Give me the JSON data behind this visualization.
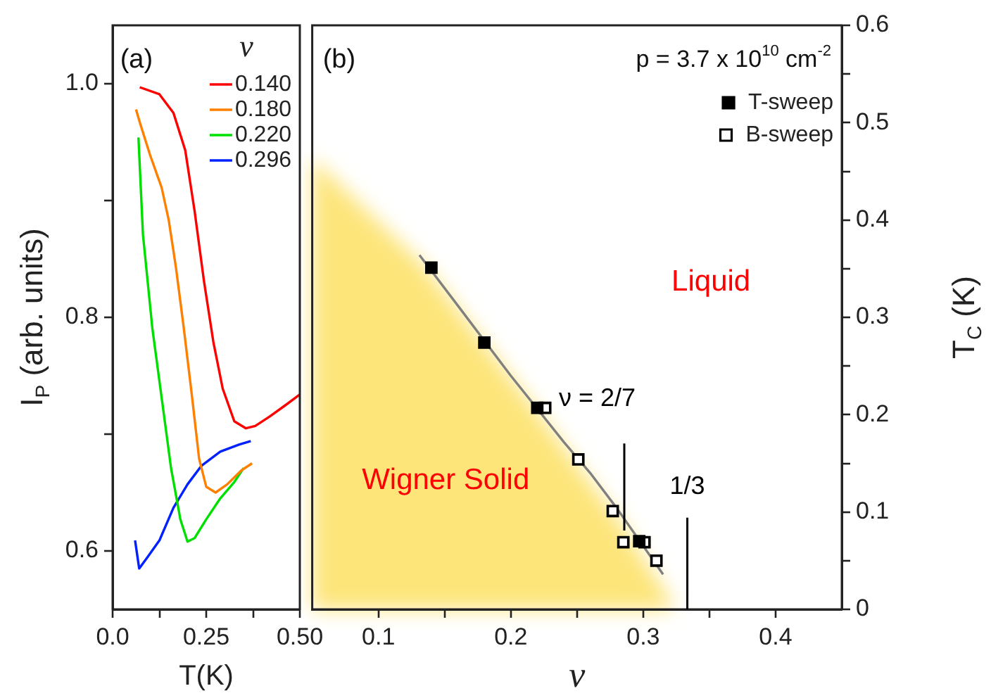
{
  "chart_data": [
    {
      "type": "line",
      "xlabel": "T(K)",
      "ylabel": "I$_{P}$ (arb. units)",
      "legend_title": "ν",
      "legend": "top right",
      "annotations": [
        "(a)"
      ],
      "xlim": [
        0,
        0.5
      ],
      "xticks": [
        {
          "value": 0,
          "label": "0.0"
        },
        {
          "value": 0.125,
          "label": null
        },
        0.25,
        {
          "value": 0.375,
          "label": null
        },
        {
          "value": 0.5,
          "label": "0.50"
        }
      ],
      "ylim": [
        0.55,
        1.05
      ],
      "yticks": [
        {
          "value": 0.6,
          "label": "0.6"
        },
        {
          "value": 0.7,
          "label": null
        },
        0.8,
        {
          "value": 0.9,
          "label": null
        },
        {
          "value": 1,
          "label": "1.0"
        }
      ],
      "series": [
        {
          "name": "0.140",
          "color": "#ff0000",
          "x": [
            0.0725,
            0.125,
            0.1625,
            0.194,
            0.219,
            0.244,
            0.269,
            0.294,
            0.325,
            0.356,
            0.381,
            0.419,
            0.4625,
            0.5
          ],
          "values": [
            0.997,
            0.991,
            0.975,
            0.943,
            0.891,
            0.831,
            0.779,
            0.739,
            0.711,
            0.705,
            0.707,
            0.715,
            0.725,
            0.734
          ]
        },
        {
          "name": "0.180",
          "color": "#ff8000",
          "x": [
            0.0625,
            0.0725,
            0.1,
            0.131,
            0.15,
            0.169,
            0.19,
            0.2125,
            0.231,
            0.25,
            0.275,
            0.306,
            0.344,
            0.3725
          ],
          "values": [
            0.978,
            0.967,
            0.939,
            0.911,
            0.883,
            0.843,
            0.791,
            0.731,
            0.679,
            0.655,
            0.65,
            0.657,
            0.669,
            0.675
          ]
        },
        {
          "name": "0.220",
          "color": "#00e000",
          "x": [
            0.069,
            0.081,
            0.106,
            0.131,
            0.156,
            0.181,
            0.2,
            0.219,
            0.25,
            0.2875,
            0.325,
            0.35
          ],
          "values": [
            0.954,
            0.871,
            0.791,
            0.731,
            0.671,
            0.627,
            0.608,
            0.611,
            0.627,
            0.645,
            0.659,
            0.671
          ]
        },
        {
          "name": "0.296",
          "color": "#0020ff",
          "x": [
            0.06,
            0.071,
            0.094,
            0.125,
            0.1625,
            0.2,
            0.2375,
            0.2875,
            0.3375,
            0.369
          ],
          "values": [
            0.609,
            0.585,
            0.595,
            0.609,
            0.637,
            0.657,
            0.673,
            0.685,
            0.691,
            0.694
          ]
        }
      ]
    },
    {
      "type": "scatter",
      "xlabel": "ν",
      "ylabel": "T$_{C}$ (K)",
      "legend": "top right",
      "annotations": [
        "(b)",
        "p = 3.7 x 10$^{10}$ cm$^{-2}$",
        "Liquid",
        "Wigner Solid",
        "ν = 2/7",
        "1/3"
      ],
      "xlim": [
        0.05,
        0.45
      ],
      "xticks": [
        0.1,
        {
          "value": 0.15,
          "label": null
        },
        0.2,
        {
          "value": 0.25,
          "label": null
        },
        0.3,
        {
          "value": 0.35,
          "label": null
        },
        0.4
      ],
      "ylim": [
        0,
        0.6
      ],
      "yticks": [
        0,
        {
          "value": 0.05,
          "label": null
        },
        0.1,
        {
          "value": 0.15,
          "label": null
        },
        0.2,
        {
          "value": 0.25,
          "label": null
        },
        0.3,
        {
          "value": 0.35,
          "label": null
        },
        0.4,
        {
          "value": 0.45,
          "label": null
        },
        0.5,
        {
          "value": 0.55,
          "label": null
        },
        0.6
      ],
      "ref_lines": [
        {
          "axis": "x",
          "value": 0.2857142857142857,
          "color": "#000000"
        },
        {
          "axis": "x",
          "value": 0.3333333333333333,
          "color": "#000000"
        }
      ],
      "series": [
        {
          "name": "T-sweep",
          "color": "#000000",
          "marker": "square",
          "x": [
            0.14,
            0.18,
            0.22,
            0.297
          ],
          "values": [
            0.351,
            0.274,
            0.207,
            0.07
          ]
        },
        {
          "name": "B-sweep",
          "color": "#000000",
          "marker": "square-open",
          "x": [
            0.226,
            0.251,
            0.277,
            0.285,
            0.301,
            0.31
          ],
          "values": [
            0.207,
            0.154,
            0.101,
            0.069,
            0.069,
            0.05
          ]
        },
        {
          "type": "line",
          "color": "#808080",
          "marker": "none",
          "x": [
            0.131,
            0.16,
            0.2,
            0.24,
            0.26,
            0.28,
            0.315
          ],
          "values": [
            0.364,
            0.312,
            0.24,
            0.172,
            0.14,
            0.104,
            0.036
          ]
        }
      ]
    }
  ]
}
